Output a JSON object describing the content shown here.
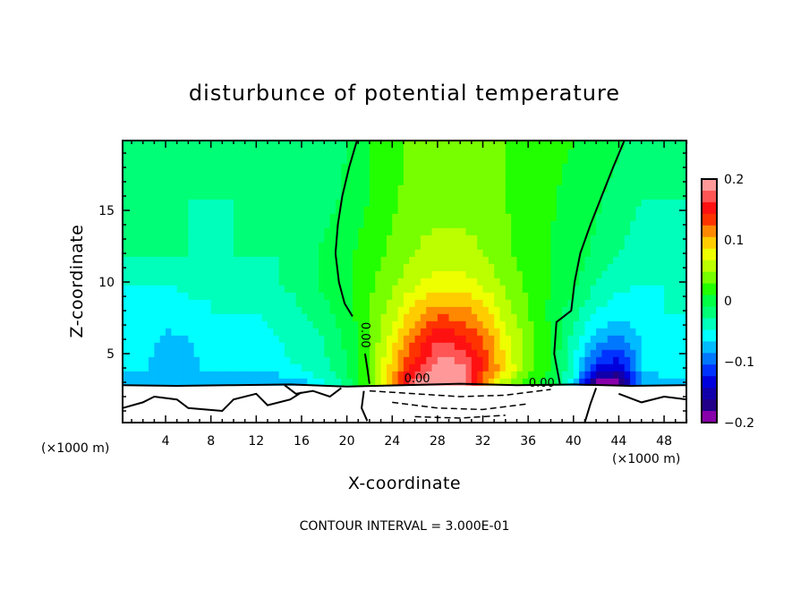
{
  "chart_data": {
    "type": "heatmap",
    "title": "disturbunce of potential temperature",
    "xlabel": "X-coordinate",
    "ylabel": "Z-coordinate",
    "x_unit_left": "(×1000 m)",
    "x_unit_right": "(×1000 m)",
    "footer": "CONTOUR INTERVAL = 3.000E-01",
    "xlim": [
      0.2,
      50
    ],
    "ylim": [
      0.2,
      19.9
    ],
    "x_ticks": [
      "4",
      "8",
      "12",
      "16",
      "20",
      "24",
      "28",
      "32",
      "36",
      "40",
      "44",
      "48"
    ],
    "y_ticks": [
      "5",
      "10",
      "15"
    ],
    "colorbar": {
      "range": [
        -0.2,
        0.2
      ],
      "tick_labels": [
        "0.2",
        "0.1",
        "0",
        "−0.1",
        "−0.2"
      ],
      "colors_top_to_bottom": [
        "#ff9999",
        "#ff5555",
        "#ff1111",
        "#ff3300",
        "#ff8800",
        "#ffcc00",
        "#eeff00",
        "#bbff00",
        "#77ff00",
        "#22ff00",
        "#00ff44",
        "#00ff77",
        "#00ffbb",
        "#00ffff",
        "#00bbff",
        "#0077ff",
        "#0033ff",
        "#0000dd",
        "#1100aa",
        "#220088",
        "#8800aa"
      ]
    },
    "grid": {
      "x": [
        0,
        2,
        4,
        6,
        8,
        10,
        12,
        14,
        16,
        18,
        20,
        22,
        24,
        26,
        28,
        30,
        32,
        34,
        36,
        38,
        40,
        42,
        44,
        46,
        48,
        50
      ],
      "z": [
        20,
        16,
        12,
        10,
        8,
        6,
        4,
        3
      ],
      "values": [
        [
          -0.03,
          -0.03,
          -0.03,
          -0.03,
          -0.03,
          -0.03,
          -0.03,
          -0.03,
          -0.03,
          -0.03,
          -0.01,
          0.01,
          0.02,
          0.04,
          0.04,
          0.04,
          0.04,
          0.03,
          0.02,
          0.015,
          0.01,
          0.005,
          -0.005,
          -0.02,
          -0.03,
          -0.03
        ],
        [
          -0.03,
          -0.03,
          -0.03,
          -0.03,
          -0.03,
          -0.03,
          -0.03,
          -0.03,
          -0.03,
          -0.02,
          -0.005,
          0.01,
          0.025,
          0.04,
          0.04,
          0.04,
          0.04,
          0.03,
          0.02,
          0.012,
          0.005,
          -0.005,
          -0.02,
          -0.03,
          -0.03,
          -0.03
        ],
        [
          -0.03,
          -0.03,
          -0.03,
          -0.03,
          -0.035,
          -0.03,
          -0.03,
          -0.03,
          -0.03,
          -0.005,
          0.005,
          0.02,
          0.035,
          0.05,
          0.06,
          0.06,
          0.05,
          0.035,
          0.02,
          0.01,
          0.0,
          -0.015,
          -0.03,
          -0.04,
          -0.04,
          -0.04
        ],
        [
          -0.05,
          -0.05,
          -0.05,
          -0.045,
          -0.05,
          -0.04,
          -0.035,
          -0.03,
          -0.025,
          -0.005,
          0.005,
          0.025,
          0.045,
          0.065,
          0.08,
          0.08,
          0.065,
          0.045,
          0.025,
          0.01,
          -0.005,
          -0.03,
          -0.045,
          -0.05,
          -0.05,
          -0.05
        ],
        [
          -0.05,
          -0.055,
          -0.06,
          -0.055,
          -0.05,
          -0.05,
          -0.05,
          -0.04,
          -0.03,
          -0.015,
          0.0,
          0.03,
          0.06,
          0.1,
          0.12,
          0.12,
          0.1,
          0.06,
          0.03,
          0.005,
          -0.02,
          -0.05,
          -0.06,
          -0.055,
          -0.05,
          -0.05
        ],
        [
          -0.055,
          -0.06,
          -0.075,
          -0.07,
          -0.055,
          -0.06,
          -0.06,
          -0.05,
          -0.04,
          -0.03,
          -0.005,
          0.03,
          0.08,
          0.13,
          0.17,
          0.16,
          0.13,
          0.08,
          0.04,
          0.01,
          -0.04,
          -0.08,
          -0.1,
          -0.07,
          -0.055,
          -0.05
        ],
        [
          -0.06,
          -0.065,
          -0.085,
          -0.08,
          -0.06,
          -0.065,
          -0.06,
          -0.055,
          -0.05,
          -0.035,
          -0.01,
          0.03,
          0.1,
          0.16,
          0.2,
          0.2,
          0.15,
          0.09,
          0.04,
          0.01,
          -0.05,
          -0.13,
          -0.15,
          -0.07,
          -0.05,
          -0.05
        ],
        [
          -0.09,
          -0.09,
          -0.09,
          -0.09,
          -0.09,
          -0.09,
          -0.09,
          -0.09,
          -0.08,
          -0.05,
          -0.02,
          0.03,
          0.12,
          0.2,
          0.2,
          0.2,
          0.12,
          0.06,
          0.02,
          0.0,
          -0.06,
          -0.2,
          -0.2,
          -0.09,
          -0.09,
          -0.09
        ]
      ],
      "below_z_blank": 2.8
    },
    "contours": [
      {
        "style": "solid",
        "points": [
          [
            20.9,
            19.9
          ],
          [
            20.2,
            18
          ],
          [
            19.6,
            16
          ],
          [
            19.2,
            14
          ],
          [
            19.0,
            12
          ],
          [
            19.3,
            10
          ],
          [
            19.8,
            8.5
          ],
          [
            20.5,
            7.6
          ]
        ]
      },
      {
        "style": "solid",
        "points": [
          [
            21.6,
            5.0
          ],
          [
            21.8,
            4.0
          ],
          [
            22.0,
            2.9
          ]
        ]
      },
      {
        "style": "solid",
        "points": [
          [
            44.5,
            19.9
          ],
          [
            43.5,
            18
          ],
          [
            42.5,
            16
          ],
          [
            41.5,
            14
          ],
          [
            40.6,
            12
          ],
          [
            40.1,
            10
          ],
          [
            39.8,
            8
          ],
          [
            38.5,
            7.2
          ],
          [
            38.3,
            5
          ],
          [
            38.8,
            2.9
          ]
        ]
      },
      {
        "style": "solid",
        "points": [
          [
            0.2,
            2.8
          ],
          [
            5,
            2.75
          ],
          [
            10,
            2.8
          ],
          [
            15,
            2.85
          ],
          [
            20,
            2.7
          ],
          [
            25,
            2.8
          ],
          [
            30,
            2.9
          ],
          [
            35,
            2.8
          ],
          [
            40,
            2.85
          ],
          [
            45,
            2.75
          ],
          [
            50,
            2.8
          ]
        ]
      },
      {
        "style": "solid",
        "points": [
          [
            0.2,
            1.2
          ],
          [
            2,
            1.6
          ],
          [
            3,
            2.0
          ],
          [
            5,
            1.8
          ],
          [
            6,
            1.2
          ],
          [
            9,
            1.0
          ],
          [
            10,
            1.8
          ],
          [
            12,
            2.2
          ],
          [
            13,
            1.4
          ],
          [
            15,
            1.8
          ],
          [
            16,
            2.3
          ]
        ]
      },
      {
        "style": "solid",
        "points": [
          [
            14.5,
            2.8
          ],
          [
            15.5,
            2.2
          ],
          [
            17,
            2.4
          ],
          [
            18.5,
            2.0
          ],
          [
            19.5,
            2.6
          ]
        ]
      },
      {
        "style": "solid",
        "points": [
          [
            21.5,
            2.4
          ],
          [
            21.3,
            1.2
          ],
          [
            21.8,
            0.3
          ]
        ]
      },
      {
        "style": "solid",
        "points": [
          [
            41,
            0.2
          ],
          [
            41.5,
            1.5
          ],
          [
            42,
            2.6
          ]
        ]
      },
      {
        "style": "solid",
        "points": [
          [
            44,
            2.2
          ],
          [
            46,
            1.6
          ],
          [
            48,
            2.0
          ],
          [
            50,
            1.8
          ]
        ]
      },
      {
        "style": "dashed",
        "points": [
          [
            22,
            2.4
          ],
          [
            26,
            2.2
          ],
          [
            30,
            2.0
          ],
          [
            34,
            2.1
          ],
          [
            38,
            2.5
          ]
        ]
      },
      {
        "style": "dashed",
        "points": [
          [
            24,
            1.6
          ],
          [
            28,
            1.2
          ],
          [
            32,
            1.1
          ],
          [
            36,
            1.5
          ]
        ]
      },
      {
        "style": "dashed",
        "points": [
          [
            26,
            0.6
          ],
          [
            30,
            0.5
          ],
          [
            34,
            0.7
          ]
        ]
      }
    ],
    "contour_labels": [
      {
        "text": "0.00",
        "x": 21.3,
        "z": 6.3,
        "rotate": true
      },
      {
        "text": "0.00",
        "x": 26.2,
        "z": 3.0,
        "rotate": false
      },
      {
        "text": "0.00",
        "x": 37.2,
        "z": 2.7,
        "rotate": false
      }
    ]
  }
}
